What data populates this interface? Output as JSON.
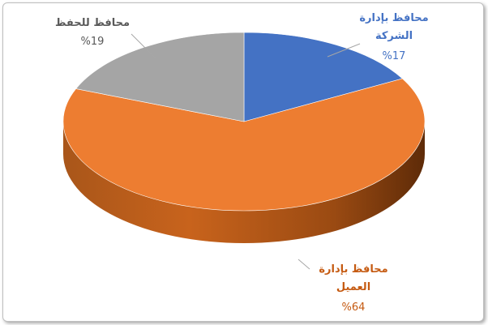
{
  "chart_data": {
    "type": "pie",
    "three_d": true,
    "categories": [
      "محافظ بإدارة الشركة",
      "محافظ بإدارة العميل",
      "محافظ للحفظ"
    ],
    "values": [
      17,
      64,
      19
    ],
    "value_labels": [
      "%17",
      "%64",
      "%19"
    ],
    "colors": [
      "#4472c4",
      "#ed7d31",
      "#a5a5a5"
    ]
  }
}
